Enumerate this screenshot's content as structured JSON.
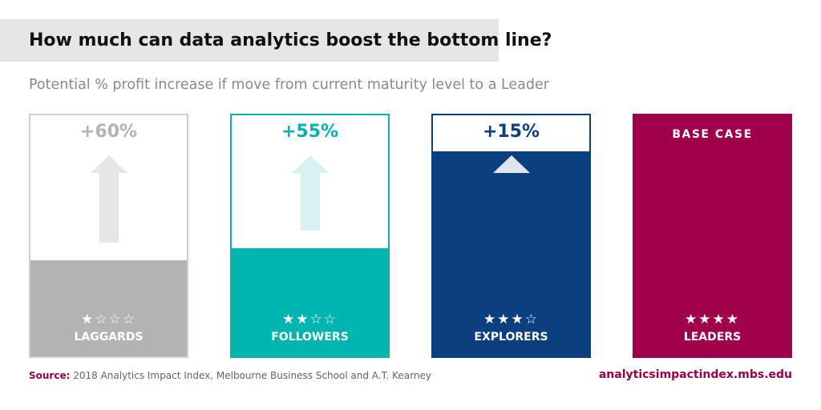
{
  "colors": {
    "laggards": "#b3b3b3",
    "followers": "#00b5b0",
    "explorers": "#0c3f80",
    "leaders": "#a0004a",
    "title_band": "#e6e6e6"
  },
  "chart_data": {
    "type": "bar",
    "title": "How much can data analytics boost the bottom line?",
    "subtitle": "Potential % profit increase if move from current maturity level to a Leader",
    "categories": [
      "LAGGARDS",
      "FOLLOWERS",
      "EXPLORERS",
      "LEADERS"
    ],
    "values": [
      60,
      55,
      15,
      0
    ],
    "value_labels": [
      "+60%",
      "+55%",
      "+15%",
      "BASE CASE"
    ],
    "stars": [
      "★☆☆☆",
      "★★☆☆",
      "★★★☆",
      "★★★★"
    ],
    "star_ratings": [
      1,
      2,
      3,
      4
    ],
    "ylim": [
      0,
      100
    ],
    "xlabel": "",
    "ylabel": "",
    "legend": "none",
    "grid": false
  },
  "footer": {
    "source_label": "Source:",
    "source_text": "2018 Analytics Impact Index, Melbourne Business School and A.T. Kearney",
    "url": "analyticsimpactindex.mbs.edu"
  }
}
